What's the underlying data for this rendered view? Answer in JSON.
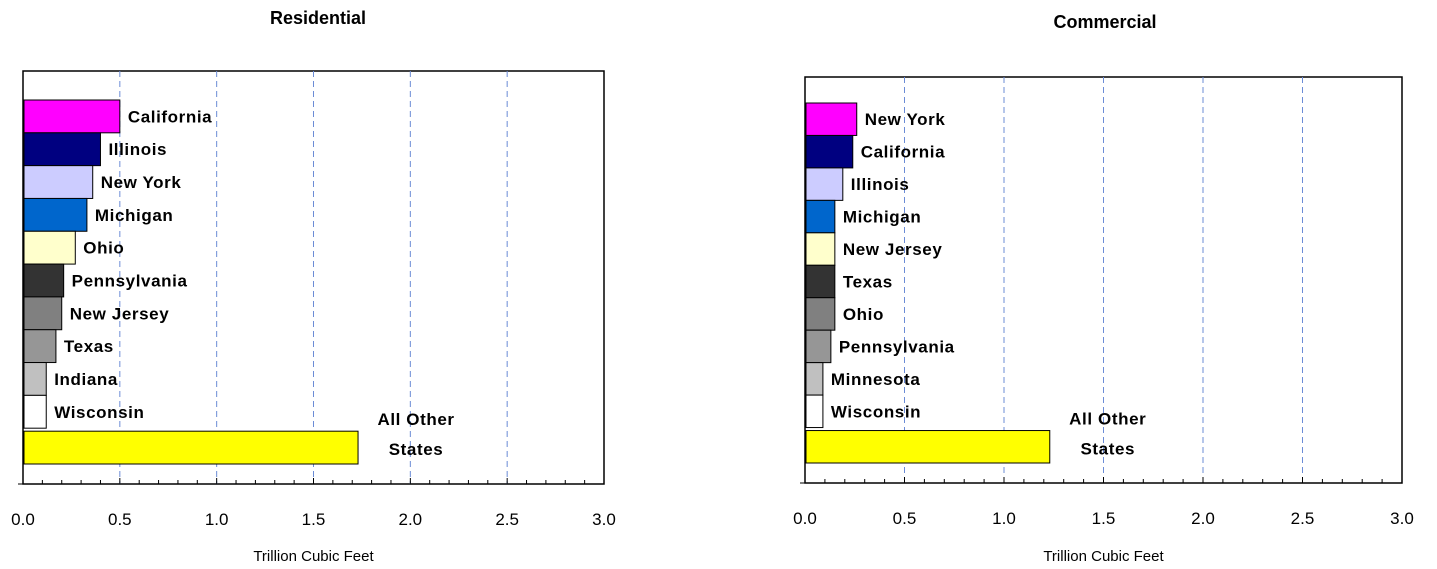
{
  "chart_data": [
    {
      "type": "bar",
      "orientation": "horizontal",
      "title": "Residential",
      "xlabel": "Trillion Cubic Feet",
      "ylabel": "",
      "xlim": [
        0,
        3
      ],
      "xticks": [
        "0.0",
        "0.5",
        "1.0",
        "1.5",
        "2.0",
        "2.5",
        "3.0"
      ],
      "grid": "vertical-dashed",
      "categories": [
        {
          "label": "California",
          "value": 0.5,
          "color": "#ff00ff"
        },
        {
          "label": "Illinois",
          "value": 0.4,
          "color": "#000080"
        },
        {
          "label": "New York",
          "value": 0.36,
          "color": "#ccccff"
        },
        {
          "label": "Michigan",
          "value": 0.33,
          "color": "#0066cc"
        },
        {
          "label": "Ohio",
          "value": 0.27,
          "color": "#ffffcc"
        },
        {
          "label": "Pennsylvania",
          "value": 0.21,
          "color": "#333333"
        },
        {
          "label": "New Jersey",
          "value": 0.2,
          "color": "#808080"
        },
        {
          "label": "Texas",
          "value": 0.17,
          "color": "#969696"
        },
        {
          "label": "Indiana",
          "value": 0.12,
          "color": "#c0c0c0"
        },
        {
          "label": "Wisconsin",
          "value": 0.12,
          "color": "#ffffff"
        },
        {
          "label": "All Other States",
          "label_lines": [
            "All Other",
            "States"
          ],
          "value": 1.73,
          "color": "#ffff00"
        }
      ]
    },
    {
      "type": "bar",
      "orientation": "horizontal",
      "title": "Commercial",
      "xlabel": "Trillion Cubic Feet",
      "ylabel": "",
      "xlim": [
        0,
        3
      ],
      "xticks": [
        "0.0",
        "0.5",
        "1.0",
        "1.5",
        "2.0",
        "2.5",
        "3.0"
      ],
      "grid": "vertical-dashed",
      "categories": [
        {
          "label": "New York",
          "value": 0.26,
          "color": "#ff00ff"
        },
        {
          "label": "California",
          "value": 0.24,
          "color": "#000080"
        },
        {
          "label": "Illinois",
          "value": 0.19,
          "color": "#ccccff"
        },
        {
          "label": "Michigan",
          "value": 0.15,
          "color": "#0066cc"
        },
        {
          "label": "New Jersey",
          "value": 0.15,
          "color": "#ffffcc"
        },
        {
          "label": "Texas",
          "value": 0.15,
          "color": "#333333"
        },
        {
          "label": "Ohio",
          "value": 0.15,
          "color": "#808080"
        },
        {
          "label": "Pennsylvania",
          "value": 0.13,
          "color": "#969696"
        },
        {
          "label": "Minnesota",
          "value": 0.09,
          "color": "#c0c0c0"
        },
        {
          "label": "Wisconsin",
          "value": 0.09,
          "color": "#ffffff"
        },
        {
          "label": "All Other States",
          "label_lines": [
            "All Other",
            "States"
          ],
          "value": 1.23,
          "color": "#ffff00"
        }
      ]
    }
  ]
}
